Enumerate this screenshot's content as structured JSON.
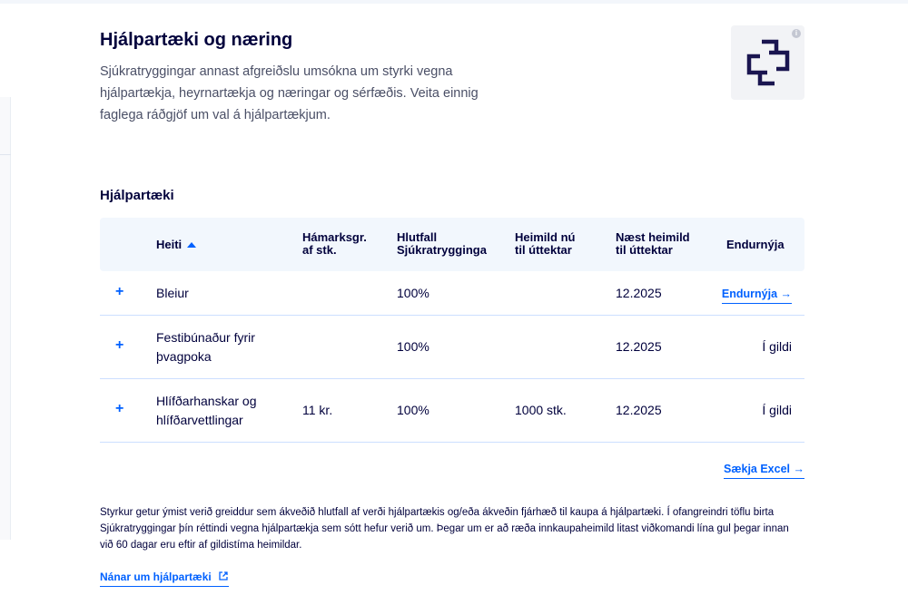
{
  "header": {
    "title": "Hjálpartæki og næring",
    "intro": "Sjúkratryggingar annast afgreiðslu umsókna um styrki vegna hjálpartækja, heyrnartækja og næringar og sérfæðis. Veita einnig faglega ráðgjöf um val á hjálpartækjum.",
    "logo_icon": "sjukratryggingar-cross-logo",
    "info_icon": "info-icon",
    "info_glyph": "i"
  },
  "section": {
    "title": "Hjálpartæki"
  },
  "table": {
    "columns": {
      "heiti": "Heiti",
      "hamarks_l1": "Hámarksgr.",
      "hamarks_l2": "af stk.",
      "hlutfall_l1": "Hlutfall",
      "hlutfall_l2": "Sjúkratrygginga",
      "heimild_l1": "Heimild nú",
      "heimild_l2": "til úttektar",
      "naest_l1": "Næst heimild",
      "naest_l2": "til úttektar",
      "endurnyja": "Endurnýja"
    },
    "rows": [
      {
        "expand": "+",
        "name_l1": "Bleiur",
        "name_l2": "",
        "hamarks": "",
        "hlutfall": "100%",
        "heimild": "",
        "naest": "12.2025",
        "action": "Endurnýja →",
        "action_is_link": true
      },
      {
        "expand": "+",
        "name_l1": "Festibúnaður fyrir",
        "name_l2": "þvagpoka",
        "hamarks": "",
        "hlutfall": "100%",
        "heimild": "",
        "naest": "12.2025",
        "action": "Í gildi",
        "action_is_link": false
      },
      {
        "expand": "+",
        "name_l1": "Hlífðarhanskar og",
        "name_l2": "hlífðarvettlingar",
        "hamarks": "11 kr.",
        "hlutfall": "100%",
        "heimild": "1000 stk.",
        "naest": "12.2025",
        "action": "Í gildi",
        "action_is_link": false
      }
    ]
  },
  "download": {
    "label": "Sækja Excel →"
  },
  "footnote": "Styrkur getur ýmist verið greiddur sem ákveðið hlutfall af verði hjálpartækis og/eða ákveðin fjárhæð til kaupa á hjálpartæki. Í ofangreindri töflu birta Sjúkratryggingar þín réttindi vegna hjálpartækja sem sótt hefur verið um. Þegar um er að ræða innkaupaheimild litast viðkomandi lína gul þegar innan við 60 dagar eru eftir af gildistíma heimildar.",
  "more_link": {
    "label": "Nánar um hjálpartæki",
    "icon": "external-link-icon"
  },
  "colors": {
    "accent": "#0061ff",
    "text": "#00003c",
    "header_bg": "#f2f7fd",
    "logo": "#1a1550"
  }
}
